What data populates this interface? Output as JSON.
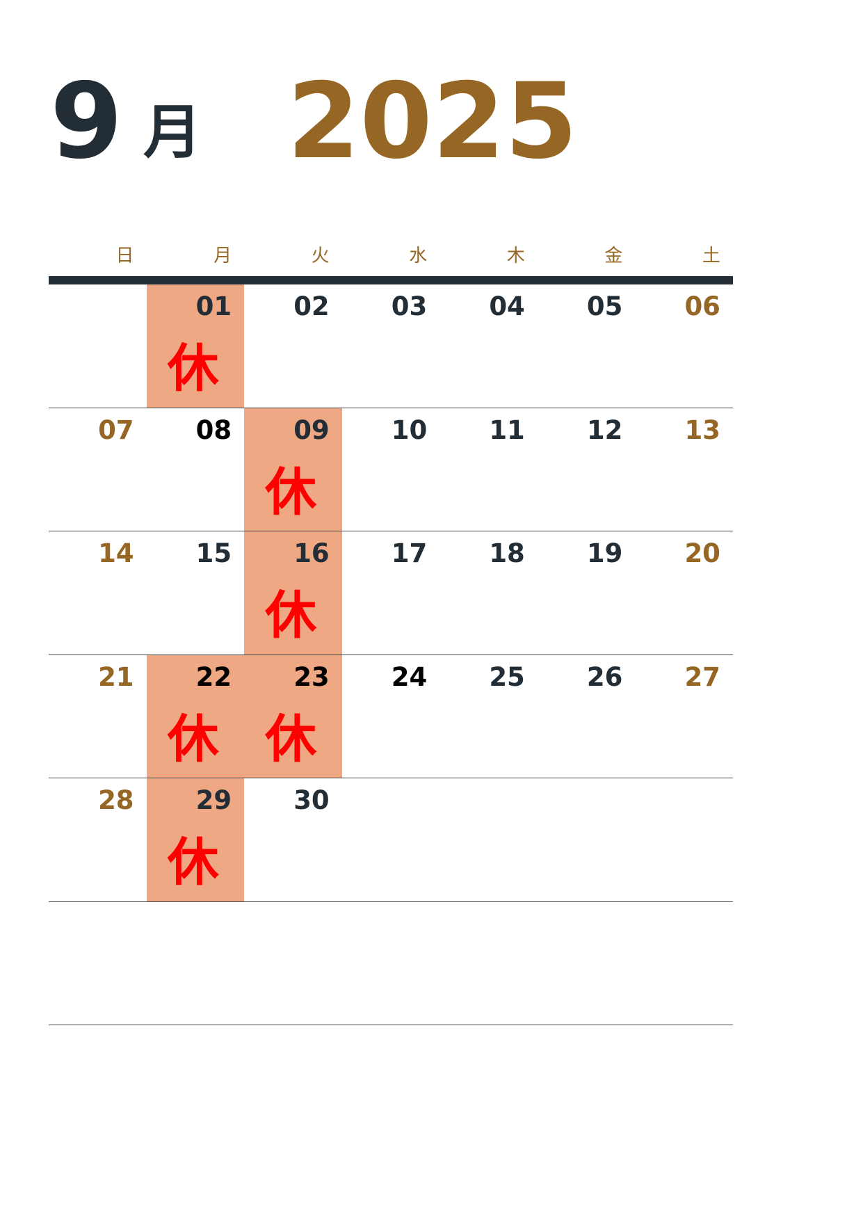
{
  "header": {
    "month": "9",
    "month_unit": "月",
    "year": "2025"
  },
  "weekdays": [
    "日",
    "月",
    "火",
    "水",
    "木",
    "金",
    "土"
  ],
  "closed_mark": "休",
  "weeks": [
    [
      {
        "date": ""
      },
      {
        "date": "01",
        "closed": true
      },
      {
        "date": "02"
      },
      {
        "date": "03"
      },
      {
        "date": "04"
      },
      {
        "date": "05"
      },
      {
        "date": "06"
      }
    ],
    [
      {
        "date": "07"
      },
      {
        "date": "08"
      },
      {
        "date": "09",
        "closed": true
      },
      {
        "date": "10"
      },
      {
        "date": "11"
      },
      {
        "date": "12"
      },
      {
        "date": "13"
      }
    ],
    [
      {
        "date": "14"
      },
      {
        "date": "15"
      },
      {
        "date": "16",
        "closed": true
      },
      {
        "date": "17"
      },
      {
        "date": "18"
      },
      {
        "date": "19"
      },
      {
        "date": "20"
      }
    ],
    [
      {
        "date": "21"
      },
      {
        "date": "22",
        "closed": true
      },
      {
        "date": "23",
        "closed": true
      },
      {
        "date": "24"
      },
      {
        "date": "25"
      },
      {
        "date": "26"
      },
      {
        "date": "27"
      }
    ],
    [
      {
        "date": "28"
      },
      {
        "date": "29",
        "closed": true
      },
      {
        "date": "30"
      },
      {
        "date": ""
      },
      {
        "date": ""
      },
      {
        "date": ""
      },
      {
        "date": ""
      }
    ],
    [
      {
        "date": ""
      },
      {
        "date": ""
      },
      {
        "date": ""
      },
      {
        "date": ""
      },
      {
        "date": ""
      },
      {
        "date": ""
      },
      {
        "date": ""
      }
    ]
  ],
  "colors": {
    "dark": "#232d36",
    "accent": "#966624",
    "closed_bg": "#efa884",
    "closed_text": "#ff0000"
  }
}
